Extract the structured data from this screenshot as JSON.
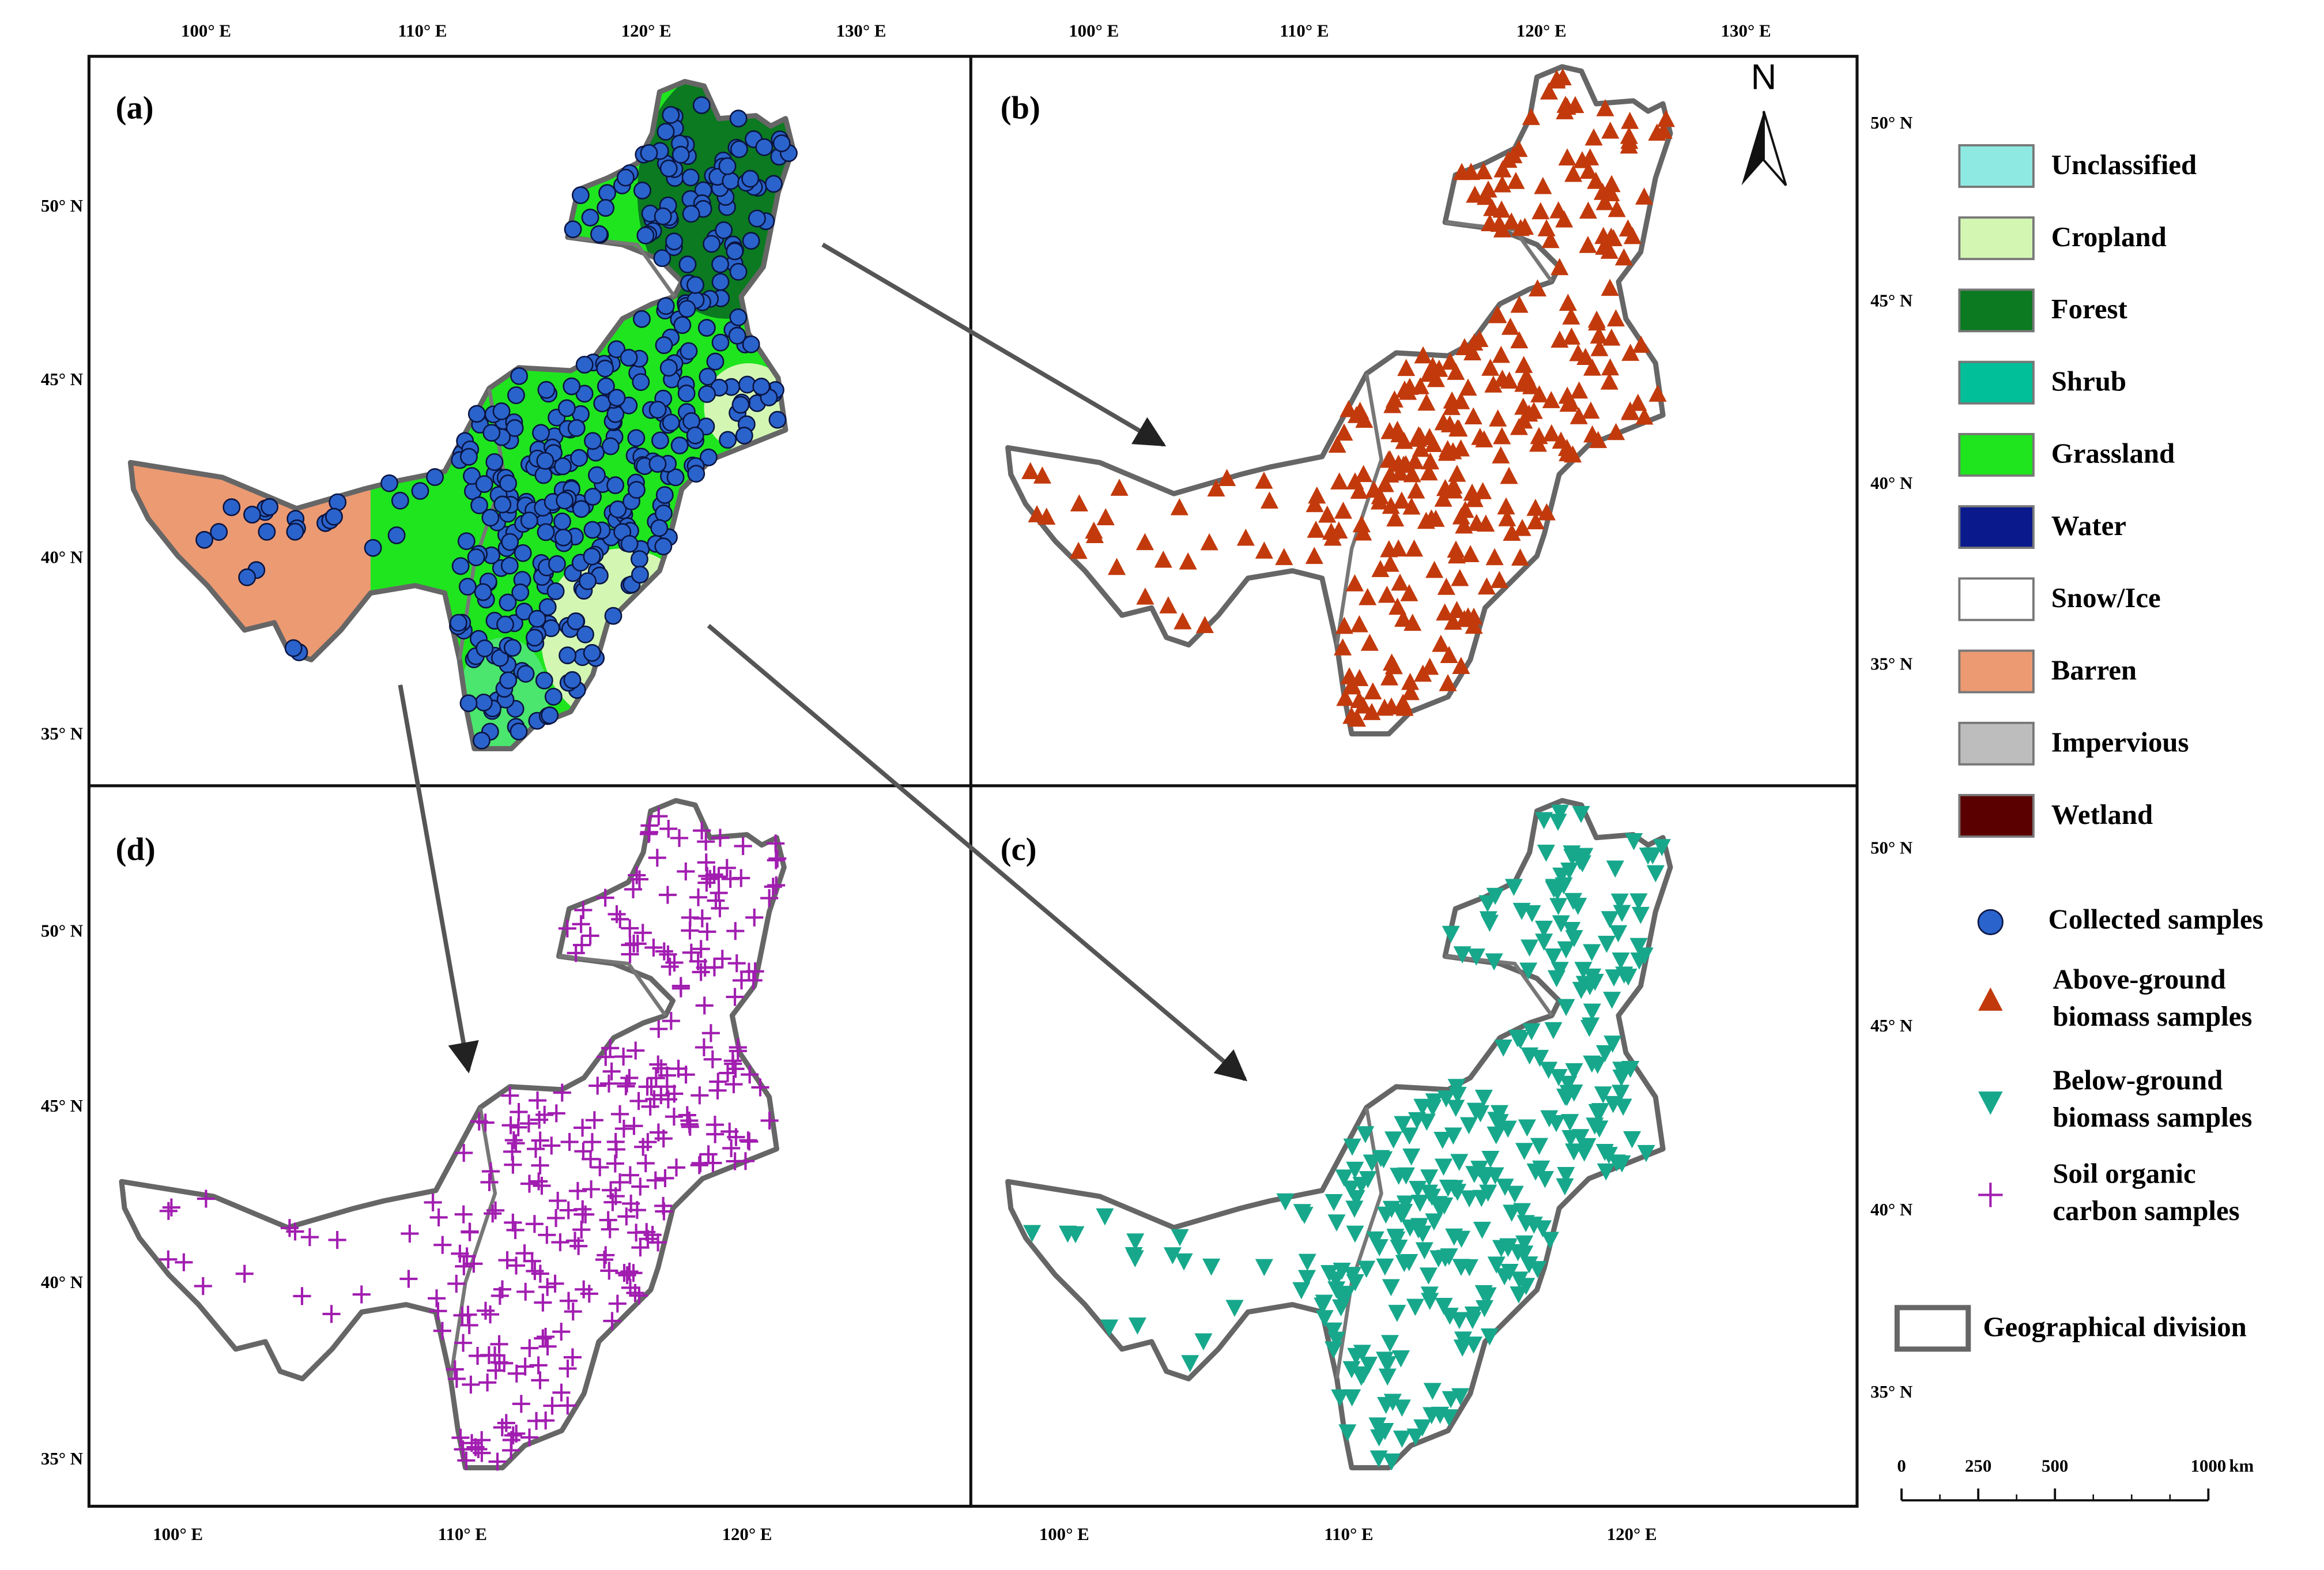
{
  "panels": [
    "(a)",
    "(b)",
    "(c)",
    "(d)"
  ],
  "north": "N",
  "lon_labels": {
    "a": [
      "100° E",
      "110° E",
      "120° E",
      "130° E"
    ],
    "b": [
      "100° E",
      "110° E",
      "120° E",
      "130° E"
    ],
    "c": [
      "100° E",
      "110° E",
      "120° E"
    ],
    "d": [
      "100° E",
      "110° E",
      "120° E"
    ]
  },
  "lat_labels": {
    "a": [
      "50° N",
      "45° N",
      "40° N",
      "35° N"
    ],
    "b": [
      "50° N",
      "45° N",
      "40° N",
      "35° N"
    ],
    "c": [
      "50° N",
      "45° N",
      "40° N",
      "35° N"
    ],
    "d": [
      "50° N",
      "45° N",
      "40° N",
      "35° N"
    ]
  },
  "land_cover_legend": [
    {
      "name": "Unclassified",
      "color": "#8fe9e3"
    },
    {
      "name": "Cropland",
      "color": "#d3f7b3"
    },
    {
      "name": "Forest",
      "color": "#0b7a20"
    },
    {
      "name": "Shrub",
      "color": "#00bf99"
    },
    {
      "name": "Grassland",
      "color": "#1fe51e"
    },
    {
      "name": "Water",
      "color": "#0a1a8c"
    },
    {
      "name": "Snow/Ice",
      "color": "#ffffff"
    },
    {
      "name": "Barren",
      "color": "#ec9a72"
    },
    {
      "name": "Impervious",
      "color": "#bdbdbd"
    },
    {
      "name": "Wetland",
      "color": "#5a0000"
    }
  ],
  "sample_legend": [
    {
      "lines": [
        "Collected samples"
      ],
      "marker": "circle",
      "color": "#2b63cc"
    },
    {
      "lines": [
        "Above-ground",
        "biomass samples"
      ],
      "marker": "triangle",
      "color": "#c23a0c"
    },
    {
      "lines": [
        "Below-ground",
        "biomass samples"
      ],
      "marker": "down-triangle",
      "color": "#17a88c"
    },
    {
      "lines": [
        "Soil organic",
        "carbon samples"
      ],
      "marker": "plus",
      "color": "#a11db0"
    }
  ],
  "division_legend": "Geographical division",
  "scale_bar": {
    "ticks": [
      0,
      250,
      500,
      1000
    ],
    "unit": "km"
  }
}
